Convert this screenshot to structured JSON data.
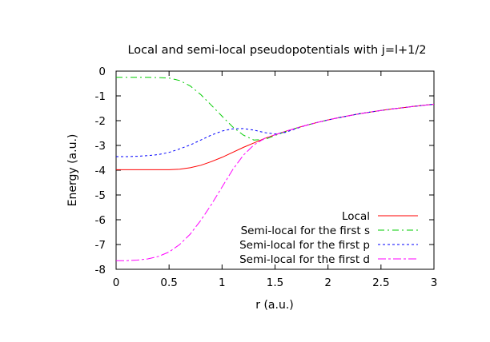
{
  "chart_data": {
    "type": "line",
    "title": "Local and semi-local pseudopotentials with j=l+1/2",
    "xlabel": "r (a.u.)",
    "ylabel": "Energy (a.u.)",
    "xlim": [
      0,
      3
    ],
    "ylim": [
      -8,
      0
    ],
    "xticks": [
      "0",
      "0.5",
      "1",
      "1.5",
      "2",
      "2.5",
      "3"
    ],
    "yticks": [
      "0",
      "-1",
      "-2",
      "-3",
      "-4",
      "-5",
      "-6",
      "-7",
      "-8"
    ],
    "grid": false,
    "legend_position": "bottom-right",
    "x": [
      0,
      0.1,
      0.2,
      0.3,
      0.4,
      0.5,
      0.6,
      0.7,
      0.8,
      0.9,
      1.0,
      1.1,
      1.2,
      1.3,
      1.4,
      1.5,
      1.6,
      1.7,
      1.8,
      1.9,
      2.0,
      2.1,
      2.2,
      2.3,
      2.4,
      2.5,
      2.6,
      2.7,
      2.8,
      2.9,
      3.0
    ],
    "series": [
      {
        "name": "Local",
        "color": "#ff0000",
        "dash": "solid",
        "values": [
          -3.98,
          -3.98,
          -3.98,
          -3.98,
          -3.98,
          -3.98,
          -3.96,
          -3.9,
          -3.8,
          -3.65,
          -3.48,
          -3.28,
          -3.08,
          -2.9,
          -2.72,
          -2.57,
          -2.43,
          -2.3,
          -2.18,
          -2.07,
          -1.97,
          -1.88,
          -1.8,
          -1.72,
          -1.65,
          -1.59,
          -1.53,
          -1.48,
          -1.43,
          -1.38,
          -1.34
        ]
      },
      {
        "name": "Semi-local for the first s",
        "color": "#00cc00",
        "dash": "8,4,2,4",
        "values": [
          -0.25,
          -0.25,
          -0.25,
          -0.25,
          -0.26,
          -0.28,
          -0.38,
          -0.6,
          -0.95,
          -1.38,
          -1.82,
          -2.25,
          -2.58,
          -2.78,
          -2.76,
          -2.6,
          -2.44,
          -2.3,
          -2.18,
          -2.07,
          -1.97,
          -1.88,
          -1.8,
          -1.72,
          -1.65,
          -1.59,
          -1.53,
          -1.48,
          -1.43,
          -1.38,
          -1.34
        ]
      },
      {
        "name": "Semi-local for the first p",
        "color": "#0000ff",
        "dash": "3,3",
        "values": [
          -3.45,
          -3.45,
          -3.44,
          -3.41,
          -3.37,
          -3.28,
          -3.14,
          -2.98,
          -2.78,
          -2.58,
          -2.42,
          -2.33,
          -2.32,
          -2.38,
          -2.48,
          -2.54,
          -2.47,
          -2.32,
          -2.18,
          -2.07,
          -1.97,
          -1.88,
          -1.8,
          -1.72,
          -1.65,
          -1.59,
          -1.53,
          -1.48,
          -1.43,
          -1.38,
          -1.34
        ]
      },
      {
        "name": "Semi-local for the first d",
        "color": "#ff00ff",
        "dash": "10,3,3,3",
        "values": [
          -7.65,
          -7.65,
          -7.63,
          -7.58,
          -7.48,
          -7.3,
          -7.0,
          -6.58,
          -6.02,
          -5.38,
          -4.68,
          -3.98,
          -3.4,
          -2.98,
          -2.72,
          -2.57,
          -2.43,
          -2.3,
          -2.18,
          -2.07,
          -1.97,
          -1.88,
          -1.8,
          -1.72,
          -1.65,
          -1.59,
          -1.53,
          -1.48,
          -1.43,
          -1.38,
          -1.34
        ]
      }
    ]
  }
}
